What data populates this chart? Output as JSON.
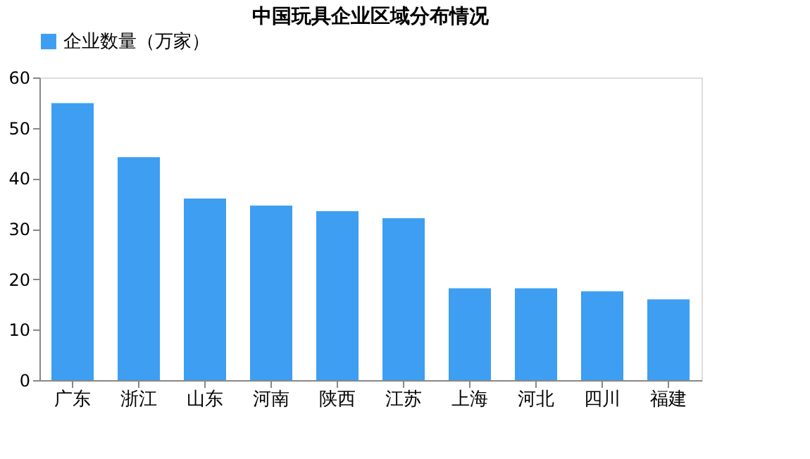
{
  "chart_data": {
    "type": "bar",
    "title": "中国玩具企业区域分布情况",
    "categories": [
      "广东",
      "浙江",
      "山东",
      "河南",
      "陕西",
      "江苏",
      "上海",
      "河北",
      "四川",
      "福建"
    ],
    "series": [
      {
        "name": "企业数量（万家）",
        "color": "#3d9ef2",
        "values": [
          54.9,
          44.2,
          36.0,
          34.6,
          33.5,
          32.1,
          18.2,
          18.2,
          17.6,
          16.0
        ]
      }
    ],
    "ylim": [
      0,
      60
    ],
    "yticks": [
      0,
      10,
      20,
      30,
      40,
      50,
      60
    ],
    "grid": false,
    "legend": "top"
  }
}
